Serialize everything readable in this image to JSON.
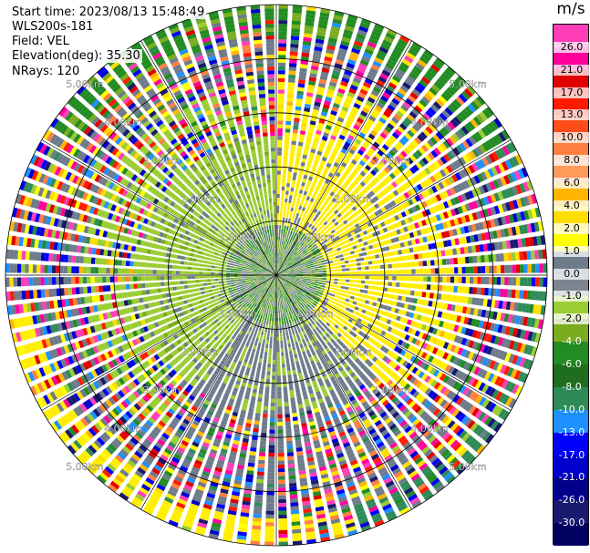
{
  "header": {
    "start_time": "Start time: 2023/08/13 15:48:49",
    "instrument": "WLS200s-181",
    "field": "Field: VEL",
    "elevation": "Elevation(deg): 35.30",
    "nrays": "NRays: 120"
  },
  "colorbar": {
    "unit": "m/s",
    "ticks": [
      "26.0",
      "21.0",
      "17.0",
      "13.0",
      "10.0",
      "8.0",
      "6.0",
      "4.0",
      "2.0",
      "1.0",
      "0.0",
      "-1.0",
      "-2.0",
      "-4.0",
      "-6.0",
      "-8.0",
      "-10.0",
      "-13.0",
      "-17.0",
      "-21.0",
      "-26.0",
      "-30.0"
    ],
    "colors": [
      "#ff3db8",
      "#ff009c",
      "#e00000",
      "#ff1a00",
      "#ff4d1a",
      "#ff8040",
      "#ff9a5a",
      "#ffb400",
      "#ffdd00",
      "#ffff00",
      "#6e7b8b",
      "#7d8690",
      "#9acd32",
      "#7aac1f",
      "#228b22",
      "#1e6e1e",
      "#2e8b57",
      "#1e90ff",
      "#0000ff",
      "#0000cd",
      "#00008b",
      "#191970",
      "#000060"
    ]
  },
  "chart_data": {
    "type": "ppi",
    "field": "VEL",
    "units": "m/s",
    "range_rings_km": [
      1.0,
      2.0,
      3.0,
      4.0,
      5.0
    ],
    "range_ring_labels": [
      "1.00km",
      "2.00km",
      "3.00km",
      "4.00km",
      "5.00km"
    ],
    "nrays": 120,
    "velocity_range": [
      -30,
      30
    ],
    "velocity_field_center": [
      {
        "azimuth_start": 0,
        "azimuth_end": 135,
        "velocity": 2.0
      },
      {
        "azimuth_start": 135,
        "azimuth_end": 220,
        "velocity": -1.0
      },
      {
        "azimuth_start": 220,
        "azimuth_end": 360,
        "velocity": -2.0
      }
    ]
  }
}
